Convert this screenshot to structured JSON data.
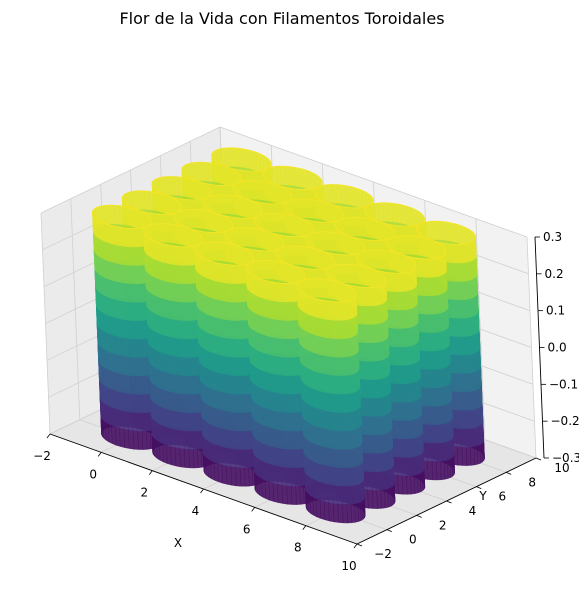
{
  "chart_data": {
    "type": "surface3d",
    "title": "Flor de la Vida con Filamentos Toroidales",
    "xlabel": "X",
    "ylabel": "Y",
    "zlabel": "",
    "xlim": [
      -2,
      10
    ],
    "ylim": [
      -2,
      10
    ],
    "zlim": [
      -0.3,
      0.3
    ],
    "xticks": [
      "−2",
      "0",
      "2",
      "4",
      "6",
      "8",
      "10"
    ],
    "yticks": [
      "−2",
      "0",
      "2",
      "4",
      "6",
      "8",
      "10"
    ],
    "zticks": [
      "−0.3",
      "−0.2",
      "−0.1",
      "0.0",
      "0.1",
      "0.2",
      "0.3"
    ],
    "colormap": "viridis",
    "grid": true,
    "tubes": {
      "x_centers": [
        0,
        2,
        4,
        6,
        8
      ],
      "y_centers": [
        0,
        2,
        4,
        6,
        8
      ],
      "radius": 1,
      "z_range": [
        -0.3,
        0.3
      ]
    }
  }
}
